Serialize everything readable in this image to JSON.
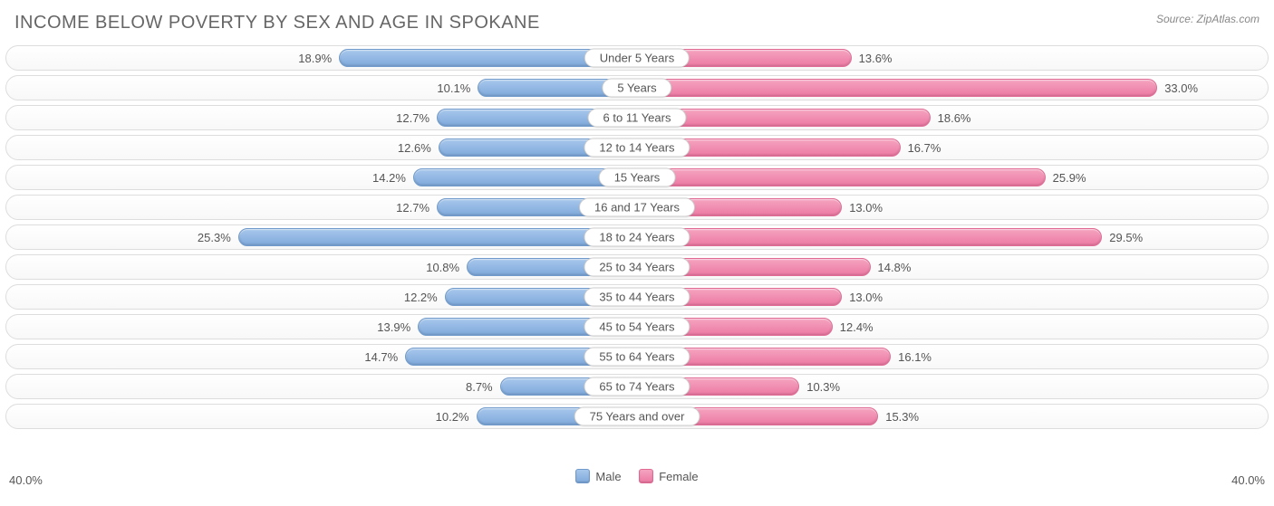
{
  "title": "INCOME BELOW POVERTY BY SEX AND AGE IN SPOKANE",
  "source_label": "Source: ZipAtlas.com",
  "chart": {
    "type": "diverging-bar",
    "axis_max": 40.0,
    "axis_tick_label_left": "40.0%",
    "axis_tick_label_right": "40.0%",
    "male_color": "#7fa9db",
    "female_color": "#ec79a3",
    "male_gradient_top": "#a7c7ec",
    "female_gradient_top": "#f5a4c0",
    "border_color": "#dddddd",
    "background_color": "#ffffff",
    "value_font_size": 13,
    "title_font_size": 20,
    "legend": {
      "male_label": "Male",
      "female_label": "Female"
    },
    "rows": [
      {
        "category": "Under 5 Years",
        "male": 18.9,
        "female": 13.6,
        "male_label": "18.9%",
        "female_label": "13.6%"
      },
      {
        "category": "5 Years",
        "male": 10.1,
        "female": 33.0,
        "male_label": "10.1%",
        "female_label": "33.0%"
      },
      {
        "category": "6 to 11 Years",
        "male": 12.7,
        "female": 18.6,
        "male_label": "12.7%",
        "female_label": "18.6%"
      },
      {
        "category": "12 to 14 Years",
        "male": 12.6,
        "female": 16.7,
        "male_label": "12.6%",
        "female_label": "16.7%"
      },
      {
        "category": "15 Years",
        "male": 14.2,
        "female": 25.9,
        "male_label": "14.2%",
        "female_label": "25.9%"
      },
      {
        "category": "16 and 17 Years",
        "male": 12.7,
        "female": 13.0,
        "male_label": "12.7%",
        "female_label": "13.0%"
      },
      {
        "category": "18 to 24 Years",
        "male": 25.3,
        "female": 29.5,
        "male_label": "25.3%",
        "female_label": "29.5%"
      },
      {
        "category": "25 to 34 Years",
        "male": 10.8,
        "female": 14.8,
        "male_label": "10.8%",
        "female_label": "14.8%"
      },
      {
        "category": "35 to 44 Years",
        "male": 12.2,
        "female": 13.0,
        "male_label": "12.2%",
        "female_label": "13.0%"
      },
      {
        "category": "45 to 54 Years",
        "male": 13.9,
        "female": 12.4,
        "male_label": "13.9%",
        "female_label": "12.4%"
      },
      {
        "category": "55 to 64 Years",
        "male": 14.7,
        "female": 16.1,
        "male_label": "14.7%",
        "female_label": "16.1%"
      },
      {
        "category": "65 to 74 Years",
        "male": 8.7,
        "female": 10.3,
        "male_label": "8.7%",
        "female_label": "10.3%"
      },
      {
        "category": "75 Years and over",
        "male": 10.2,
        "female": 15.3,
        "male_label": "10.2%",
        "female_label": "15.3%"
      }
    ]
  }
}
